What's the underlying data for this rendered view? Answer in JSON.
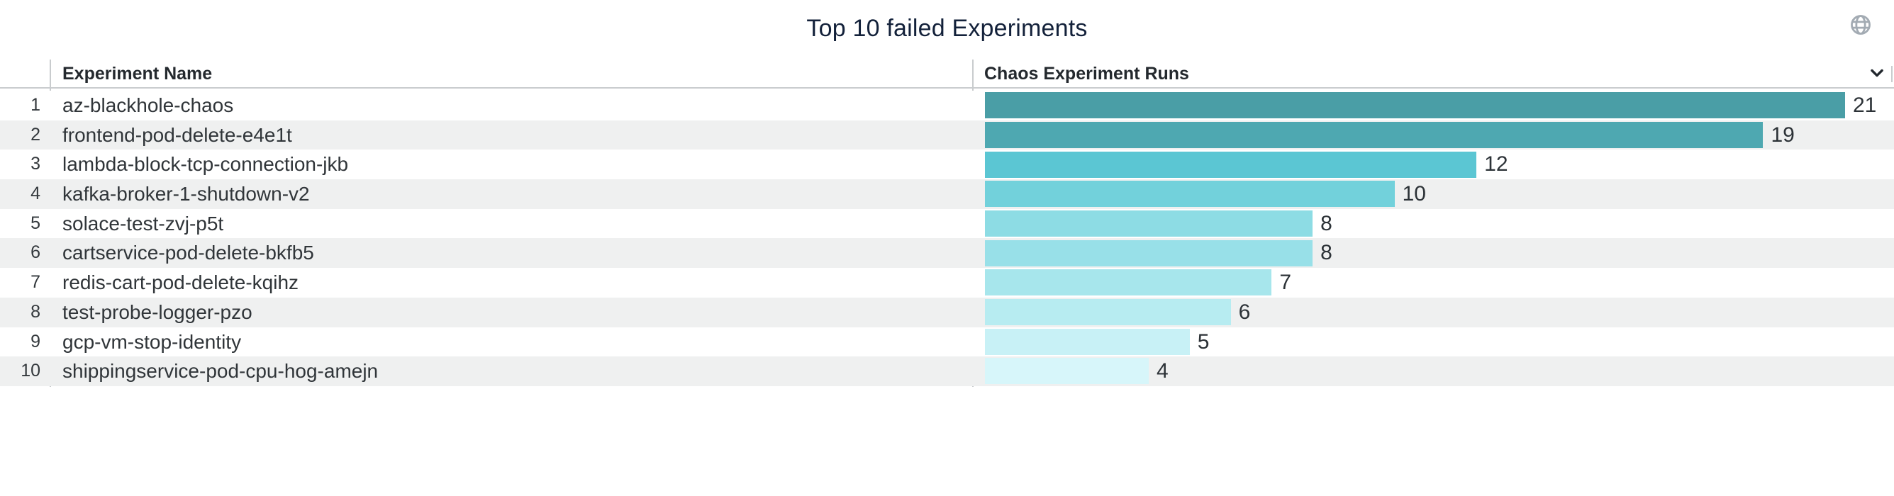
{
  "panel": {
    "title": "Top 10 failed Experiments"
  },
  "icons": {
    "globe_color": "#a3abb3",
    "chevron_color": "#23292f"
  },
  "table": {
    "columns": [
      "Experiment Name",
      "Chaos Experiment Runs"
    ],
    "rows": [
      {
        "rank": "1",
        "name": "az-blackhole-chaos",
        "runs": 21,
        "color": "#4A9EA6"
      },
      {
        "rank": "2",
        "name": "frontend-pod-delete-e4e1t",
        "runs": 19,
        "color": "#4EA8B1"
      },
      {
        "rank": "3",
        "name": "lambda-block-tcp-connection-jkb",
        "runs": 12,
        "color": "#5BC6D3"
      },
      {
        "rank": "4",
        "name": "kafka-broker-1-shutdown-v2",
        "runs": 10,
        "color": "#72D1DB"
      },
      {
        "rank": "5",
        "name": "solace-test-zvj-p5t",
        "runs": 8,
        "color": "#8DDCE4"
      },
      {
        "rank": "6",
        "name": "cartservice-pod-delete-bkfb5",
        "runs": 8,
        "color": "#98E0E8"
      },
      {
        "rank": "7",
        "name": "redis-cart-pod-delete-kqihz",
        "runs": 7,
        "color": "#A7E6EC"
      },
      {
        "rank": "8",
        "name": "test-probe-logger-pzo",
        "runs": 6,
        "color": "#B7ECF1"
      },
      {
        "rank": "9",
        "name": "gcp-vm-stop-identity",
        "runs": 5,
        "color": "#C8F1F6"
      },
      {
        "rank": "10",
        "name": "shippingservice-pod-cpu-hog-amejn",
        "runs": 4,
        "color": "#D7F6FA"
      }
    ]
  },
  "chart_data": {
    "type": "bar",
    "orientation": "horizontal",
    "title": "Top 10 failed Experiments",
    "series_label": "Chaos Experiment Runs",
    "categories": [
      "az-blackhole-chaos",
      "frontend-pod-delete-e4e1t",
      "lambda-block-tcp-connection-jkb",
      "kafka-broker-1-shutdown-v2",
      "solace-test-zvj-p5t",
      "cartservice-pod-delete-bkfb5",
      "redis-cart-pod-delete-kqihz",
      "test-probe-logger-pzo",
      "gcp-vm-stop-identity",
      "shippingservice-pod-cpu-hog-amejn"
    ],
    "values": [
      21,
      19,
      12,
      10,
      8,
      8,
      7,
      6,
      5,
      4
    ],
    "xlim": [
      0,
      21
    ],
    "value_labels": true,
    "grid": false,
    "bar_colors": [
      "#4A9EA6",
      "#4EA8B1",
      "#5BC6D3",
      "#72D1DB",
      "#8DDCE4",
      "#98E0E8",
      "#A7E6EC",
      "#B7ECF1",
      "#C8F1F6",
      "#D7F6FA"
    ],
    "row_alt_background": "#eff0f0",
    "text_color": "#303539"
  }
}
